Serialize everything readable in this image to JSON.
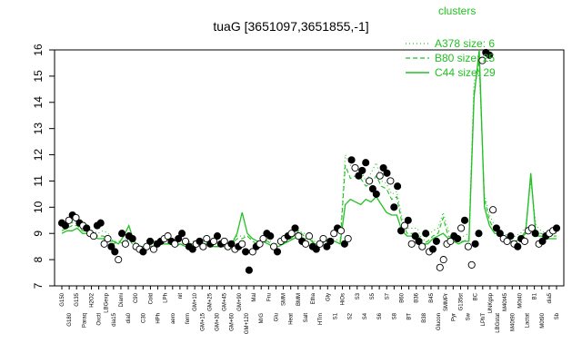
{
  "chart_data": {
    "type": "line",
    "title": "tuaG [3651097,3651855,-1]",
    "xlabel": "",
    "ylabel": "",
    "ylim": [
      7,
      16
    ],
    "yticks": [
      7,
      8,
      9,
      10,
      11,
      12,
      13,
      14,
      15,
      16
    ],
    "legend": {
      "title": "clusters",
      "placement": "top-right",
      "entries": [
        {
          "label": "A378 size: 6",
          "style": "dotted"
        },
        {
          "label": "B80 size: 25",
          "style": "dashed"
        },
        {
          "label": "C44 size: 29",
          "style": "solid"
        }
      ]
    },
    "colors": {
      "line": "#22c022",
      "point_fill_dark": "#000000",
      "point_fill_light": "#ffffff"
    },
    "tick_labels": [
      "G150",
      "G180",
      "G135",
      "Paraq",
      "H2O2",
      "Oxctl",
      "LBGexp",
      "dia15",
      "Diami",
      "dia0",
      "C90",
      "C30",
      "Cold",
      "HPh",
      "LPh",
      "aero",
      "nit",
      "ferm",
      "GM+10",
      "GM+15",
      "GM+25",
      "GM+30",
      "GM+45",
      "GM+60",
      "GM+90",
      "GM+120",
      "Mal",
      "M/G",
      "Fru",
      "Glu",
      "SMM",
      "Heat",
      "BMM",
      "Salt",
      "Etha",
      "HTm",
      "Gly",
      "S1",
      "HiOs",
      "S2",
      "S3",
      "S4",
      "S5",
      "S6",
      "S7",
      "S8",
      "B60",
      "BT",
      "B36",
      "B38",
      "B45",
      "Glucon",
      "SMMPr",
      "Pyr",
      "G135st",
      "Sw",
      "BC",
      "LPhT",
      "UNKgsp",
      "LBGstat",
      "M40t45",
      "M40t90",
      "M0t40",
      "Lactat",
      "B1",
      "M0t90",
      "dia5",
      "Sb"
    ],
    "points": [
      9.4,
      9.3,
      9.5,
      9.7,
      9.6,
      9.4,
      9.3,
      9.2,
      9.0,
      8.9,
      9.3,
      9.4,
      8.6,
      8.8,
      8.5,
      8.3,
      8.0,
      9.0,
      8.6,
      8.9,
      8.8,
      8.5,
      8.4,
      8.3,
      8.5,
      8.7,
      8.4,
      8.6,
      8.7,
      8.8,
      8.9,
      8.7,
      8.6,
      8.8,
      9.0,
      8.7,
      8.5,
      8.4,
      8.6,
      8.7,
      8.5,
      8.8,
      8.6,
      8.7,
      8.9,
      8.6,
      8.7,
      8.5,
      8.6,
      8.4,
      8.5,
      8.6,
      8.3,
      7.6,
      8.3,
      8.5,
      8.6,
      8.8,
      9.0,
      8.9,
      8.5,
      8.3,
      8.7,
      8.8,
      8.9,
      9.0,
      9.2,
      8.9,
      8.7,
      8.6,
      8.9,
      8.5,
      8.4,
      8.6,
      8.8,
      8.5,
      8.7,
      9.0,
      9.2,
      9.1,
      8.6,
      8.8,
      11.8,
      11.5,
      11.2,
      11.4,
      11.7,
      11.0,
      10.7,
      10.5,
      11.2,
      11.5,
      11.3,
      11.0,
      10.0,
      10.8,
      9.1,
      9.3,
      9.5,
      8.6,
      8.9,
      8.7,
      8.5,
      9.0,
      8.3,
      8.4,
      8.7,
      7.7,
      8.0,
      8.6,
      8.7,
      8.9,
      8.8,
      9.2,
      9.5,
      8.5,
      7.8,
      8.6,
      9.0,
      15.6,
      15.9,
      15.8,
      9.9,
      9.2,
      9.0,
      8.8,
      8.7,
      8.9,
      8.6,
      8.5,
      8.8,
      8.7,
      9.1,
      9.2,
      9.0,
      8.6,
      8.7,
      8.9,
      9.0,
      9.1,
      9.2
    ],
    "point_style": [
      1,
      1,
      0,
      1,
      0,
      1,
      0,
      1,
      0,
      0,
      1,
      1,
      0,
      0,
      1,
      1,
      0,
      1,
      0,
      1,
      1,
      0,
      0,
      1,
      0,
      1,
      0,
      1,
      1,
      0,
      0,
      1,
      0,
      1,
      1,
      0,
      1,
      1,
      0,
      1,
      0,
      0,
      1,
      0,
      1,
      1,
      0,
      0,
      1,
      0,
      1,
      0,
      1,
      1,
      0,
      1,
      0,
      0,
      1,
      1,
      0,
      1,
      0,
      0,
      1,
      0,
      1,
      0,
      1,
      0,
      0,
      1,
      1,
      0,
      0,
      1,
      1,
      0,
      1,
      0,
      1,
      0,
      1,
      0,
      1,
      1,
      1,
      0,
      1,
      1,
      0,
      1,
      1,
      0,
      1,
      1,
      1,
      0,
      1,
      0,
      1,
      1,
      0,
      1,
      0,
      1,
      1,
      0,
      0,
      0,
      0,
      1,
      1,
      0,
      1,
      0,
      0,
      1,
      1,
      0,
      1,
      1,
      0,
      1,
      1,
      0,
      0,
      1,
      0,
      1,
      1,
      0,
      0,
      0,
      1,
      0,
      1,
      1,
      0,
      0,
      1
    ],
    "series": [
      {
        "name": "A378 size: 6",
        "style": "dotted",
        "values": [
          9.3,
          9.4,
          9.4,
          9.5,
          9.2,
          9.2,
          9.1,
          9.0,
          9.1,
          9.0,
          8.7,
          8.7,
          8.7,
          8.9,
          8.6,
          8.5,
          8.5,
          8.6,
          8.7,
          8.7,
          8.7,
          8.6,
          8.6,
          8.6,
          8.6,
          8.7,
          8.7,
          8.7,
          8.7,
          8.6,
          8.6,
          8.6,
          8.6,
          8.7,
          8.9,
          8.9,
          8.9,
          8.8,
          8.7,
          8.8,
          8.8,
          8.6,
          8.6,
          8.7,
          8.8,
          9.0,
          9.1,
          9.0,
          9.0,
          8.7,
          8.6,
          8.8,
          8.8,
          8.8,
          8.7,
          12.0,
          11.6,
          11.4,
          11.4,
          11.0,
          11.3,
          11.7,
          11.0,
          10.9,
          10.5,
          10.6,
          9.6,
          9.2,
          9.2,
          9.2,
          8.7,
          8.9,
          9.1,
          9.2,
          9.8,
          9.1,
          9.0,
          8.8,
          8.9,
          9.0,
          14.8,
          15.2,
          10.5,
          9.7,
          9.3,
          9.1,
          9.0,
          8.8,
          8.9,
          9.0,
          9.2,
          11.0,
          9.3,
          9.1,
          9.0,
          9.1,
          9.0
        ]
      },
      {
        "name": "B80 size: 25",
        "style": "dashed",
        "values": [
          9.1,
          9.2,
          9.3,
          9.3,
          9.1,
          9.1,
          9.0,
          8.9,
          8.9,
          8.8,
          8.6,
          8.7,
          8.6,
          8.8,
          8.5,
          8.4,
          8.4,
          8.5,
          8.6,
          8.6,
          8.7,
          8.6,
          8.5,
          8.6,
          8.5,
          8.6,
          8.6,
          8.6,
          8.6,
          8.5,
          8.5,
          8.5,
          8.5,
          8.6,
          8.8,
          8.8,
          8.9,
          8.7,
          8.6,
          8.7,
          8.7,
          8.5,
          8.5,
          8.6,
          8.7,
          8.9,
          9.1,
          8.9,
          8.9,
          8.6,
          8.5,
          8.7,
          8.7,
          8.7,
          8.6,
          11.6,
          11.1,
          11.2,
          11.1,
          10.8,
          10.9,
          11.2,
          10.8,
          10.7,
          10.3,
          10.4,
          9.4,
          9.0,
          9.0,
          9.0,
          8.6,
          8.7,
          8.9,
          9.0,
          9.6,
          8.9,
          8.8,
          8.7,
          8.7,
          8.8,
          14.4,
          15.6,
          10.3,
          9.5,
          9.1,
          9.0,
          8.9,
          8.7,
          8.7,
          8.8,
          9.1,
          11.2,
          9.0,
          9.0,
          8.9,
          8.9,
          8.9
        ]
      },
      {
        "name": "C44 size: 29",
        "style": "solid",
        "values": [
          9.0,
          9.1,
          9.1,
          9.2,
          9.0,
          9.0,
          8.9,
          8.8,
          8.8,
          8.7,
          8.7,
          8.6,
          8.9,
          9.3,
          8.7,
          8.5,
          8.5,
          8.6,
          8.7,
          8.6,
          8.6,
          8.6,
          8.5,
          8.6,
          8.5,
          8.6,
          8.6,
          8.5,
          8.6,
          8.5,
          8.5,
          8.5,
          8.5,
          8.6,
          9.0,
          9.8,
          9.0,
          8.8,
          8.7,
          8.7,
          8.6,
          8.5,
          8.5,
          8.6,
          8.7,
          8.8,
          8.9,
          8.8,
          8.8,
          8.6,
          8.6,
          8.7,
          8.7,
          8.7,
          8.6,
          10.1,
          10.3,
          10.2,
          10.1,
          10.3,
          10.2,
          10.4,
          10.1,
          9.8,
          9.7,
          9.7,
          9.1,
          8.9,
          8.9,
          8.8,
          8.6,
          8.6,
          8.8,
          8.9,
          9.0,
          8.8,
          8.7,
          8.6,
          8.7,
          8.7,
          14.2,
          16.0,
          10.0,
          9.3,
          9.0,
          9.0,
          8.9,
          8.7,
          8.7,
          8.8,
          9.0,
          11.3,
          8.9,
          8.9,
          8.8,
          8.8,
          8.8
        ]
      }
    ]
  }
}
